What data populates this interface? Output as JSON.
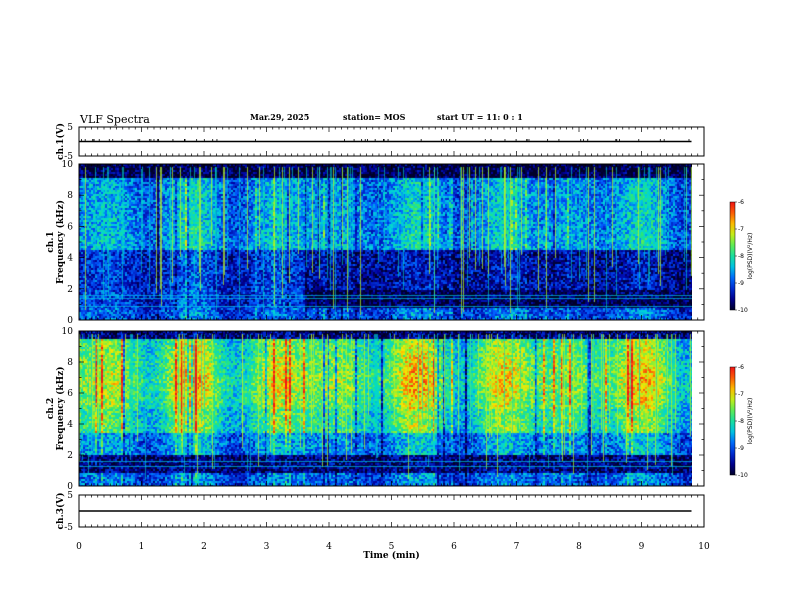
{
  "header": {
    "title": "VLF Spectra",
    "date": "Mar.29, 2025",
    "station": "station= MOS",
    "start": "start  UT  =   11: 0   : 1"
  },
  "colors": {
    "spectro_low": "#000033",
    "spectro_mid": "#00c8c8",
    "spectro_high": "#ff2020",
    "trace": "#000000"
  },
  "chart_data": [
    {
      "type": "line",
      "panel": "ch1-waveform",
      "ylabel": "ch.1(V)",
      "ylim": [
        -5,
        5
      ],
      "y_ticks": [
        "5",
        "-5"
      ],
      "xlim": [
        0,
        10
      ],
      "x": [
        0,
        9.8
      ],
      "values": [
        0,
        0
      ]
    },
    {
      "type": "heatmap",
      "panel": "ch1-spectrogram",
      "ylabel": "ch.1\nFrequency (kHz)",
      "ylim": [
        0,
        10
      ],
      "y_ticks": [
        "0",
        "2",
        "4",
        "6",
        "8",
        "10"
      ],
      "xlim": [
        0,
        10
      ],
      "colorbar": {
        "label": "log(PSD)(V²/Hz)",
        "range": [
          -10,
          -6
        ],
        "ticks": [
          "-6",
          "-7",
          "-8",
          "-9",
          "-10"
        ]
      }
    },
    {
      "type": "heatmap",
      "panel": "ch2-spectrogram",
      "ylabel": "ch.2\nFrequency (kHz)",
      "ylim": [
        0,
        10
      ],
      "y_ticks": [
        "0",
        "2",
        "4",
        "6",
        "8",
        "10"
      ],
      "xlim": [
        0,
        10
      ],
      "colorbar": {
        "label": "log(PSD)(V²/Hz)",
        "range": [
          -10,
          -6
        ],
        "ticks": [
          "-6",
          "-7",
          "-8",
          "-9",
          "-10"
        ]
      }
    },
    {
      "type": "line",
      "panel": "ch3-waveform",
      "ylabel": "ch.3(V)",
      "ylim": [
        -5,
        5
      ],
      "y_ticks": [
        "5",
        "-5"
      ],
      "xlim": [
        0,
        10
      ],
      "x": [
        0,
        9.8
      ],
      "values": [
        0,
        0
      ]
    }
  ],
  "xaxis": {
    "label": "Time  (min)",
    "ticks": [
      "0",
      "1",
      "2",
      "3",
      "4",
      "5",
      "6",
      "7",
      "8",
      "9",
      "10"
    ]
  }
}
